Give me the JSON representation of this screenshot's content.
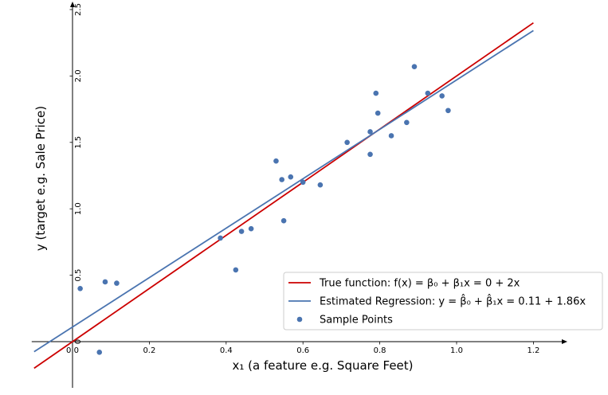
{
  "chart_data": {
    "type": "scatter",
    "xlabel": "x₁ (a feature e.g. Square Feet)",
    "ylabel": "y (target e.g. Sale Price)",
    "xlim": [
      -0.1,
      1.27
    ],
    "ylim": [
      -0.33,
      2.6
    ],
    "x_ticks": [
      "0.0",
      "0.2",
      "0.4",
      "0.6",
      "0.8",
      "1.0",
      "1.2"
    ],
    "y_ticks": [
      "0",
      "0.5",
      "1.0",
      "1.5",
      "2.0",
      "2.5"
    ],
    "legend_position": "lower-right",
    "lines": [
      {
        "name": "True function: f(x) = β₀ + β₁x = 0 + 2x",
        "color": "#cc0000",
        "x": [
          -0.1,
          1.2
        ],
        "y": [
          -0.2,
          2.4
        ]
      },
      {
        "name": "Estimated Regression: y = β̂₀ + β̂₁x = 0.11 + 1.86x",
        "color": "#4a74b0",
        "x": [
          -0.1,
          1.2
        ],
        "y": [
          -0.076,
          2.342
        ]
      }
    ],
    "scatter": {
      "name": "Sample Points",
      "color": "#4a74b0",
      "points": [
        [
          0.02,
          0.4
        ],
        [
          0.07,
          -0.08
        ],
        [
          0.085,
          0.45
        ],
        [
          0.115,
          0.44
        ],
        [
          0.385,
          0.78
        ],
        [
          0.425,
          0.54
        ],
        [
          0.44,
          0.83
        ],
        [
          0.465,
          0.85
        ],
        [
          0.53,
          1.36
        ],
        [
          0.545,
          1.22
        ],
        [
          0.55,
          0.91
        ],
        [
          0.568,
          1.24
        ],
        [
          0.6,
          1.2
        ],
        [
          0.645,
          1.18
        ],
        [
          0.715,
          1.5
        ],
        [
          0.775,
          1.41
        ],
        [
          0.775,
          1.58
        ],
        [
          0.79,
          1.87
        ],
        [
          0.795,
          1.72
        ],
        [
          0.83,
          1.55
        ],
        [
          0.87,
          1.65
        ],
        [
          0.89,
          2.07
        ],
        [
          0.925,
          1.87
        ],
        [
          0.962,
          1.85
        ],
        [
          0.978,
          1.74
        ]
      ]
    }
  }
}
